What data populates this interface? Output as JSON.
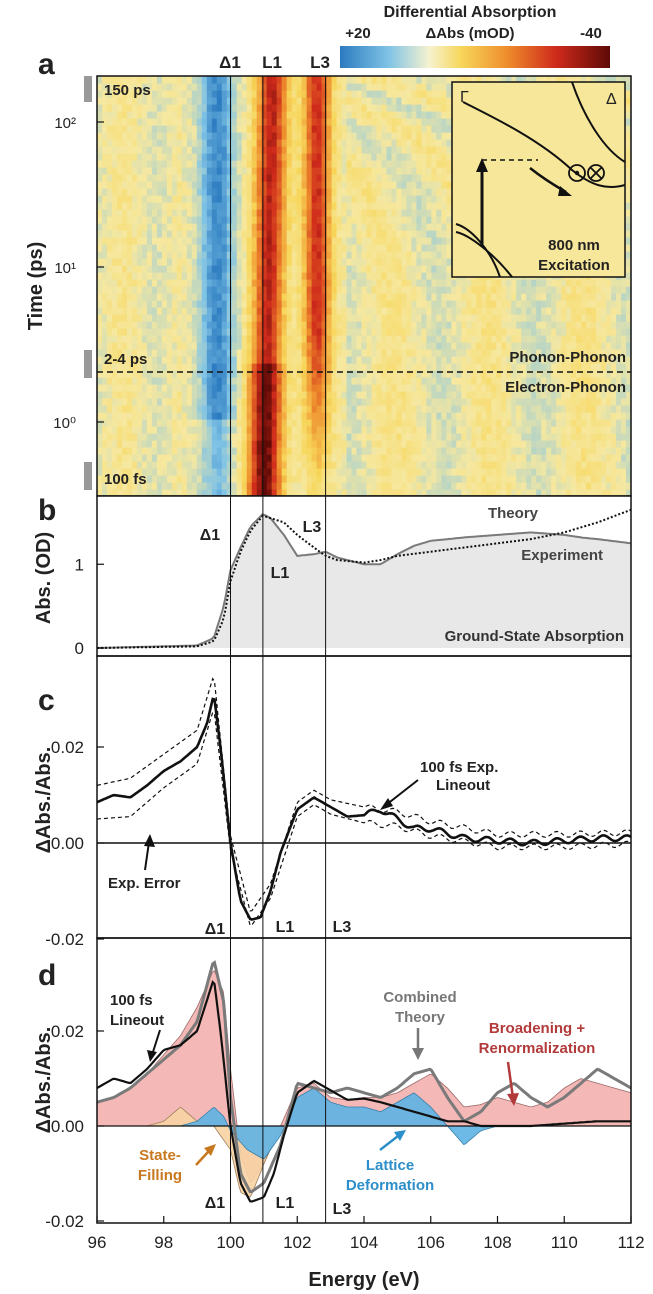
{
  "colorbar": {
    "title": "Differential Absorption",
    "unit_label": "ΔAbs (mOD)",
    "min_label": "+20",
    "max_label": "-40"
  },
  "x_axis": {
    "label": "Energy (eV)",
    "lim": [
      96,
      112
    ],
    "ticks": [
      "96",
      "98",
      "100",
      "102",
      "104",
      "106",
      "108",
      "110",
      "112"
    ],
    "tick_values": [
      96,
      98,
      100,
      102,
      104,
      106,
      108,
      110,
      112
    ]
  },
  "feature_lines": {
    "energies": [
      100.0,
      100.97,
      102.85
    ],
    "names_a": [
      "Δ1",
      "L1",
      "L3"
    ]
  },
  "panel_a": {
    "letter": "a",
    "ylabel": "Time (ps)",
    "y_ticks": [
      "10⁰",
      "10¹",
      "10²"
    ],
    "marker_150": "150 ps",
    "marker_24": "2-4 ps",
    "marker_100": "100 fs",
    "upper_regime": "Phonon-Phonon",
    "lower_regime": "Electron-Phonon",
    "inset": {
      "gamma": "Γ",
      "delta": "Δ",
      "excitation_1": "800 nm",
      "excitation_2": "Excitation"
    }
  },
  "panel_b": {
    "letter": "b",
    "ylabel": "Abs. (OD)",
    "y_ticks": [
      "0",
      "1"
    ],
    "label_theory": "Theory",
    "label_experiment": "Experiment",
    "label_ground": "Ground-State Absorption",
    "feature_labels": [
      "Δ1",
      "L1",
      "L3"
    ]
  },
  "panel_c": {
    "letter": "c",
    "ylabel": "ΔAbs./Abs.",
    "y_ticks": [
      "-0.02",
      "0.00",
      "0.02"
    ],
    "label_lineout_1": "100 fs Exp.",
    "label_lineout_2": "Lineout",
    "label_error": "Exp. Error",
    "feature_labels": [
      "Δ1",
      "L1",
      "L3"
    ]
  },
  "panel_d": {
    "letter": "d",
    "ylabel": "ΔAbs./Abs.",
    "y_ticks": [
      "-0.02",
      "0.00",
      "0.02"
    ],
    "label_lineout_1": "100 fs",
    "label_lineout_2": "Lineout",
    "label_combined_1": "Combined",
    "label_combined_2": "Theory",
    "label_broadening_1": "Broadening +",
    "label_broadening_2": "Renormalization",
    "label_state_1": "State-",
    "label_state_2": "Filling",
    "label_lattice_1": "Lattice",
    "label_lattice_2": "Deformation",
    "feature_labels": [
      "Δ1",
      "L1",
      "L3"
    ]
  },
  "colors": {
    "experiment": "#111111",
    "theory": "#7a7a7a",
    "ground_fill": "#e8e8e8",
    "broadening": "#f4b8b6",
    "lattice": "#5eb2e3",
    "state_filling": "#f7d3a4",
    "broadening_text": "#b23a3a",
    "lattice_text": "#2d8fc9",
    "state_text": "#c8781f"
  },
  "chart_data": [
    {
      "type": "heatmap",
      "panel": "a",
      "x_label": "Energy (eV)",
      "y_label": "Time (ps)",
      "y_scale": "log",
      "ylim": [
        0.1,
        150
      ],
      "colorbar_range_mOD": [
        20,
        -40
      ],
      "bands": [
        {
          "center": 99.6,
          "width": 0.5,
          "amplitude": 18,
          "feature": "Δ1 (bleach, blue)"
        },
        {
          "center": 101.0,
          "width": 0.45,
          "amplitude": -40,
          "feature": "L1 (red)"
        },
        {
          "center": 102.6,
          "width": 0.4,
          "amplitude": -30,
          "feature": "L3 (red)"
        }
      ]
    },
    {
      "type": "area",
      "panel": "b",
      "ylabel": "Abs. (OD)",
      "ylim": [
        -0.05,
        1.65
      ],
      "series": [
        {
          "name": "Experiment",
          "x": [
            96,
            99,
            99.5,
            99.8,
            100,
            100.3,
            100.6,
            100.97,
            101.2,
            101.6,
            102,
            102.5,
            102.85,
            103.2,
            104,
            104.5,
            105,
            105.5,
            106,
            107,
            108,
            109,
            110,
            110.5,
            111,
            112
          ],
          "y": [
            0,
            0.03,
            0.12,
            0.5,
            0.93,
            1.2,
            1.45,
            1.6,
            1.55,
            1.35,
            1.1,
            1.12,
            1.15,
            1.08,
            1.0,
            1.0,
            1.12,
            1.22,
            1.28,
            1.32,
            1.35,
            1.38,
            1.35,
            1.32,
            1.3,
            1.25
          ]
        },
        {
          "name": "Theory",
          "x": [
            96,
            99,
            99.5,
            99.8,
            100,
            100.3,
            100.6,
            100.97,
            101.2,
            101.6,
            102,
            102.5,
            102.85,
            103.2,
            104,
            104.5,
            105,
            106,
            107,
            108,
            109,
            110,
            111,
            112
          ],
          "y": [
            0,
            0.02,
            0.08,
            0.35,
            0.8,
            1.15,
            1.4,
            1.58,
            1.55,
            1.5,
            1.35,
            1.2,
            1.1,
            1.05,
            1.02,
            1.05,
            1.1,
            1.15,
            1.2,
            1.25,
            1.3,
            1.38,
            1.5,
            1.65
          ]
        }
      ]
    },
    {
      "type": "line",
      "panel": "c",
      "ylabel": "ΔAbs./Abs.",
      "ylim": [
        -0.02,
        0.036
      ],
      "series": [
        {
          "name": "100 fs Exp. Lineout",
          "x": [
            96,
            96.5,
            97,
            97.5,
            98,
            98.5,
            99,
            99.3,
            99.5,
            99.7,
            100,
            100.3,
            100.6,
            100.9,
            101.2,
            101.5,
            102,
            102.5,
            103,
            103.5,
            104,
            104.5,
            105,
            105.5,
            106,
            107,
            108,
            109,
            110,
            111,
            112
          ],
          "y": [
            0.0085,
            0.01,
            0.0095,
            0.012,
            0.015,
            0.017,
            0.02,
            0.025,
            0.031,
            0.02,
            0.0,
            -0.012,
            -0.016,
            -0.0155,
            -0.01,
            -0.002,
            0.007,
            0.0095,
            0.0075,
            0.0055,
            0.0058,
            0.007,
            0.005,
            0.003,
            0.003,
            0.001,
            0.0005,
            0.0,
            0.0005,
            0.001,
            0.001
          ]
        },
        {
          "name": "Exp. Error (upper)",
          "x": [
            96,
            97,
            98,
            99,
            99.5,
            100,
            100.6,
            101.2,
            102,
            102.5,
            103,
            104,
            105,
            106,
            108,
            110,
            112
          ],
          "y": [
            0.012,
            0.0135,
            0.0185,
            0.0235,
            0.035,
            0.0015,
            -0.0145,
            -0.0085,
            0.0085,
            0.011,
            0.009,
            0.0075,
            0.0065,
            0.0045,
            0.0018,
            0.0018,
            0.0022
          ]
        },
        {
          "name": "Exp. Error (lower)",
          "x": [
            96,
            97,
            98,
            99,
            99.5,
            100,
            100.6,
            101.2,
            102,
            102.5,
            103,
            104,
            105,
            106,
            108,
            110,
            112
          ],
          "y": [
            0.005,
            0.0055,
            0.0115,
            0.0165,
            0.028,
            -0.0015,
            -0.0175,
            -0.0115,
            0.0055,
            0.008,
            0.006,
            0.0042,
            0.0035,
            0.0015,
            -0.0008,
            -0.0008,
            -0.0002
          ]
        }
      ]
    },
    {
      "type": "area",
      "panel": "d",
      "ylabel": "ΔAbs./Abs.",
      "ylim": [
        -0.02,
        0.036
      ],
      "series": [
        {
          "name": "Broadening + Renormalization",
          "x": [
            96,
            96.5,
            97,
            97.5,
            98,
            98.5,
            99,
            99.5,
            99.8,
            100,
            100.3,
            100.6,
            101,
            101.5,
            102,
            102.5,
            103,
            103.5,
            104,
            104.5,
            105,
            105.5,
            106,
            106.5,
            107,
            107.5,
            108,
            108.5,
            109,
            109.5,
            110,
            110.5,
            111,
            111.5,
            112
          ],
          "y": [
            0.005,
            0.006,
            0.008,
            0.011,
            0.015,
            0.019,
            0.025,
            0.033,
            0.028,
            0.012,
            -0.006,
            -0.012,
            -0.008,
            0.0,
            0.008,
            0.009,
            0.006,
            0.0055,
            0.006,
            0.006,
            0.007,
            0.009,
            0.011,
            0.008,
            0.004,
            0.0045,
            0.006,
            0.005,
            0.004,
            0.005,
            0.008,
            0.01,
            0.009,
            0.008,
            0.007
          ]
        },
        {
          "name": "Lattice Deformation",
          "x": [
            96,
            98.5,
            99,
            99.5,
            99.8,
            100,
            100.5,
            101,
            101.5,
            102,
            102.5,
            103,
            103.5,
            104,
            104.5,
            105,
            105.5,
            106,
            106.5,
            107,
            107.5,
            108,
            109,
            110,
            111,
            112
          ],
          "y": [
            0,
            0,
            0.001,
            0.004,
            0.002,
            -0.001,
            -0.005,
            -0.007,
            -0.002,
            0.006,
            0.008,
            0.005,
            0.004,
            0.004,
            0.003,
            0.005,
            0.007,
            0.004,
            0.0,
            -0.004,
            -0.001,
            0.0,
            0.0,
            0.0,
            0.0,
            0.0
          ]
        },
        {
          "name": "State-Filling",
          "x": [
            96,
            97.5,
            98,
            98.5,
            99,
            99.5,
            100,
            100.3,
            100.6,
            101,
            101.3,
            101.6,
            102,
            112
          ],
          "y": [
            0,
            0.0,
            0.001,
            0.004,
            0.001,
            0.0,
            -0.005,
            -0.014,
            -0.015,
            -0.008,
            -0.003,
            0.0,
            0.0,
            0.0
          ]
        },
        {
          "name": "Combined Theory",
          "x": [
            96,
            96.5,
            97,
            97.5,
            98,
            98.5,
            99,
            99.5,
            99.8,
            100,
            100.3,
            100.6,
            101,
            101.5,
            102,
            102.5,
            103,
            103.5,
            104,
            104.5,
            105,
            105.5,
            106,
            106.5,
            107,
            107.5,
            108,
            108.5,
            109,
            109.5,
            110,
            110.5,
            111,
            111.5,
            112
          ],
          "y": [
            0.005,
            0.006,
            0.008,
            0.011,
            0.014,
            0.017,
            0.022,
            0.035,
            0.026,
            0.006,
            -0.01,
            -0.014,
            -0.012,
            -0.004,
            0.009,
            0.008,
            0.007,
            0.008,
            0.007,
            0.006,
            0.008,
            0.011,
            0.012,
            0.006,
            0.001,
            0.003,
            0.007,
            0.009,
            0.006,
            0.004,
            0.006,
            0.009,
            0.012,
            0.01,
            0.008
          ]
        },
        {
          "name": "100 fs Lineout",
          "x": [
            96,
            96.5,
            97,
            97.5,
            98,
            98.5,
            99,
            99.5,
            99.7,
            100,
            100.3,
            100.6,
            101,
            101.3,
            101.6,
            102,
            102.5,
            103,
            103.5,
            104,
            104.5,
            105,
            105.5,
            106,
            106.5,
            107,
            107.5,
            108,
            109,
            110,
            111,
            112
          ],
          "y": [
            0.008,
            0.01,
            0.009,
            0.012,
            0.016,
            0.017,
            0.02,
            0.031,
            0.02,
            0.0,
            -0.012,
            -0.016,
            -0.015,
            -0.01,
            -0.002,
            0.007,
            0.0095,
            0.0075,
            0.0055,
            0.0058,
            0.005,
            0.004,
            0.003,
            0.002,
            0.001,
            0.001,
            0.0,
            0.0,
            0.0,
            0.0005,
            0.001,
            0.001
          ]
        }
      ]
    }
  ]
}
